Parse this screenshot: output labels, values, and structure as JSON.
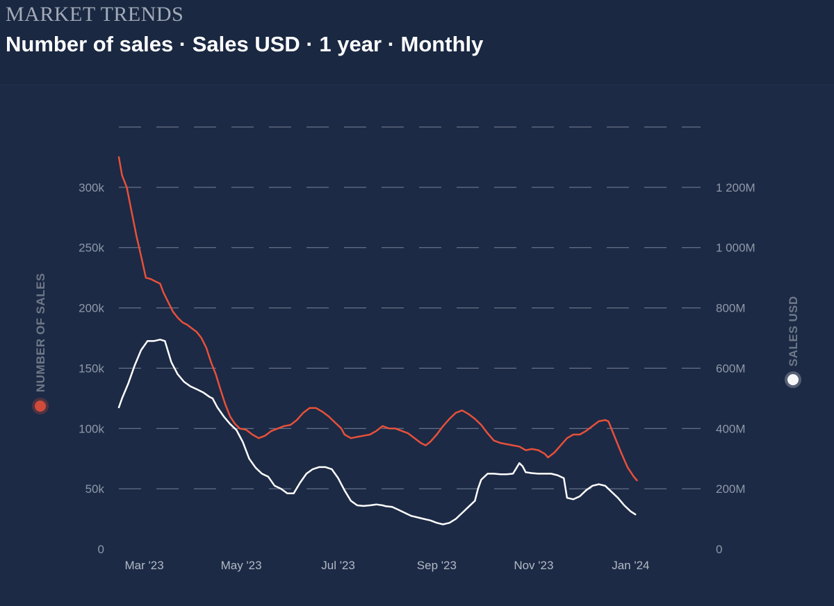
{
  "header": {
    "kicker": "MARKET TRENDS",
    "title": "Number of sales · Sales USD · 1 year · Monthly"
  },
  "chart_data": {
    "type": "line",
    "x_tick_labels": [
      "Mar '23",
      "May '23",
      "Jul '23",
      "Sep '23",
      "Nov '23",
      "Jan '24"
    ],
    "x_range_days": [
      0,
      366
    ],
    "x_tick_days": [
      16,
      77,
      138,
      200,
      261,
      322
    ],
    "left_axis": {
      "title": "NUMBER OF SALES",
      "range": [
        0,
        350000
      ],
      "ticks": [
        0,
        50000,
        100000,
        150000,
        200000,
        250000,
        300000
      ],
      "tick_labels": [
        "0",
        "50k",
        "100k",
        "150k",
        "200k",
        "250k",
        "300k"
      ]
    },
    "right_axis": {
      "title": "SALES USD",
      "range": [
        0,
        1400000000
      ],
      "ticks": [
        0,
        200000000,
        400000000,
        600000000,
        800000000,
        1000000000,
        1200000000
      ],
      "tick_labels": [
        "0",
        "200M",
        "400M",
        "600M",
        "800M",
        "1 000M",
        "1 200M"
      ]
    },
    "series": [
      {
        "name": "Number of sales",
        "axis": "left",
        "color": "#e8503a",
        "points": [
          [
            0,
            325000
          ],
          [
            2,
            310000
          ],
          [
            5,
            300000
          ],
          [
            8,
            280000
          ],
          [
            11,
            260000
          ],
          [
            14,
            243000
          ],
          [
            17,
            225000
          ],
          [
            20,
            224000
          ],
          [
            23,
            222000
          ],
          [
            26,
            220000
          ],
          [
            28,
            213000
          ],
          [
            31,
            205000
          ],
          [
            34,
            197000
          ],
          [
            37,
            192000
          ],
          [
            40,
            188000
          ],
          [
            43,
            186000
          ],
          [
            46,
            183000
          ],
          [
            49,
            180000
          ],
          [
            52,
            175000
          ],
          [
            55,
            167000
          ],
          [
            58,
            155000
          ],
          [
            61,
            145000
          ],
          [
            64,
            132000
          ],
          [
            67,
            120000
          ],
          [
            70,
            110000
          ],
          [
            73,
            104000
          ],
          [
            76,
            100000
          ],
          [
            80,
            99000
          ],
          [
            84,
            95000
          ],
          [
            88,
            92000
          ],
          [
            92,
            94000
          ],
          [
            96,
            98000
          ],
          [
            100,
            100000
          ],
          [
            104,
            102000
          ],
          [
            108,
            103000
          ],
          [
            112,
            107000
          ],
          [
            116,
            113000
          ],
          [
            120,
            117000
          ],
          [
            124,
            117000
          ],
          [
            128,
            114000
          ],
          [
            132,
            110000
          ],
          [
            136,
            105000
          ],
          [
            140,
            100000
          ],
          [
            142,
            95000
          ],
          [
            146,
            92000
          ],
          [
            150,
            93000
          ],
          [
            154,
            94000
          ],
          [
            158,
            95000
          ],
          [
            162,
            98000
          ],
          [
            166,
            102000
          ],
          [
            170,
            100000
          ],
          [
            174,
            100000
          ],
          [
            178,
            98000
          ],
          [
            182,
            96000
          ],
          [
            186,
            92000
          ],
          [
            190,
            88000
          ],
          [
            193,
            86000
          ],
          [
            196,
            89000
          ],
          [
            200,
            95000
          ],
          [
            204,
            102000
          ],
          [
            208,
            108000
          ],
          [
            212,
            113000
          ],
          [
            216,
            115000
          ],
          [
            220,
            112000
          ],
          [
            224,
            108000
          ],
          [
            228,
            103000
          ],
          [
            232,
            96000
          ],
          [
            236,
            90000
          ],
          [
            240,
            88000
          ],
          [
            244,
            87000
          ],
          [
            248,
            86000
          ],
          [
            252,
            85000
          ],
          [
            256,
            82000
          ],
          [
            260,
            83000
          ],
          [
            264,
            82000
          ],
          [
            268,
            79000
          ],
          [
            270,
            76000
          ],
          [
            274,
            80000
          ],
          [
            278,
            86000
          ],
          [
            282,
            92000
          ],
          [
            286,
            95000
          ],
          [
            290,
            95000
          ],
          [
            294,
            98000
          ],
          [
            298,
            102000
          ],
          [
            302,
            106000
          ],
          [
            306,
            107000
          ],
          [
            308,
            106000
          ],
          [
            312,
            93000
          ],
          [
            316,
            80000
          ],
          [
            320,
            68000
          ],
          [
            324,
            60000
          ],
          [
            326,
            57000
          ]
        ]
      },
      {
        "name": "Sales USD",
        "axis": "right",
        "color": "#ffffff",
        "points": [
          [
            0,
            470000000
          ],
          [
            2,
            500000000
          ],
          [
            6,
            550000000
          ],
          [
            10,
            610000000
          ],
          [
            14,
            660000000
          ],
          [
            18,
            690000000
          ],
          [
            22,
            690000000
          ],
          [
            26,
            695000000
          ],
          [
            29,
            690000000
          ],
          [
            33,
            620000000
          ],
          [
            37,
            580000000
          ],
          [
            41,
            555000000
          ],
          [
            45,
            540000000
          ],
          [
            49,
            530000000
          ],
          [
            53,
            520000000
          ],
          [
            57,
            505000000
          ],
          [
            59,
            500000000
          ],
          [
            62,
            470000000
          ],
          [
            66,
            440000000
          ],
          [
            70,
            415000000
          ],
          [
            74,
            395000000
          ],
          [
            78,
            355000000
          ],
          [
            82,
            300000000
          ],
          [
            86,
            270000000
          ],
          [
            90,
            250000000
          ],
          [
            94,
            240000000
          ],
          [
            98,
            210000000
          ],
          [
            102,
            200000000
          ],
          [
            106,
            185000000
          ],
          [
            110,
            185000000
          ],
          [
            114,
            220000000
          ],
          [
            118,
            250000000
          ],
          [
            122,
            265000000
          ],
          [
            126,
            272000000
          ],
          [
            130,
            272000000
          ],
          [
            134,
            265000000
          ],
          [
            138,
            235000000
          ],
          [
            142,
            195000000
          ],
          [
            146,
            160000000
          ],
          [
            150,
            145000000
          ],
          [
            154,
            143000000
          ],
          [
            158,
            145000000
          ],
          [
            162,
            148000000
          ],
          [
            166,
            145000000
          ],
          [
            168,
            142000000
          ],
          [
            172,
            140000000
          ],
          [
            176,
            130000000
          ],
          [
            180,
            120000000
          ],
          [
            184,
            110000000
          ],
          [
            188,
            105000000
          ],
          [
            192,
            100000000
          ],
          [
            196,
            95000000
          ],
          [
            200,
            87000000
          ],
          [
            204,
            82000000
          ],
          [
            208,
            87000000
          ],
          [
            212,
            100000000
          ],
          [
            216,
            120000000
          ],
          [
            220,
            140000000
          ],
          [
            224,
            160000000
          ],
          [
            226,
            200000000
          ],
          [
            228,
            230000000
          ],
          [
            232,
            250000000
          ],
          [
            236,
            250000000
          ],
          [
            240,
            248000000
          ],
          [
            244,
            248000000
          ],
          [
            248,
            250000000
          ],
          [
            252,
            285000000
          ],
          [
            254,
            275000000
          ],
          [
            256,
            255000000
          ],
          [
            260,
            252000000
          ],
          [
            264,
            250000000
          ],
          [
            268,
            250000000
          ],
          [
            272,
            250000000
          ],
          [
            276,
            245000000
          ],
          [
            280,
            235000000
          ],
          [
            282,
            170000000
          ],
          [
            286,
            165000000
          ],
          [
            290,
            175000000
          ],
          [
            294,
            195000000
          ],
          [
            298,
            210000000
          ],
          [
            302,
            215000000
          ],
          [
            306,
            210000000
          ],
          [
            310,
            190000000
          ],
          [
            314,
            170000000
          ],
          [
            318,
            145000000
          ],
          [
            322,
            125000000
          ],
          [
            325,
            115000000
          ]
        ]
      }
    ]
  }
}
